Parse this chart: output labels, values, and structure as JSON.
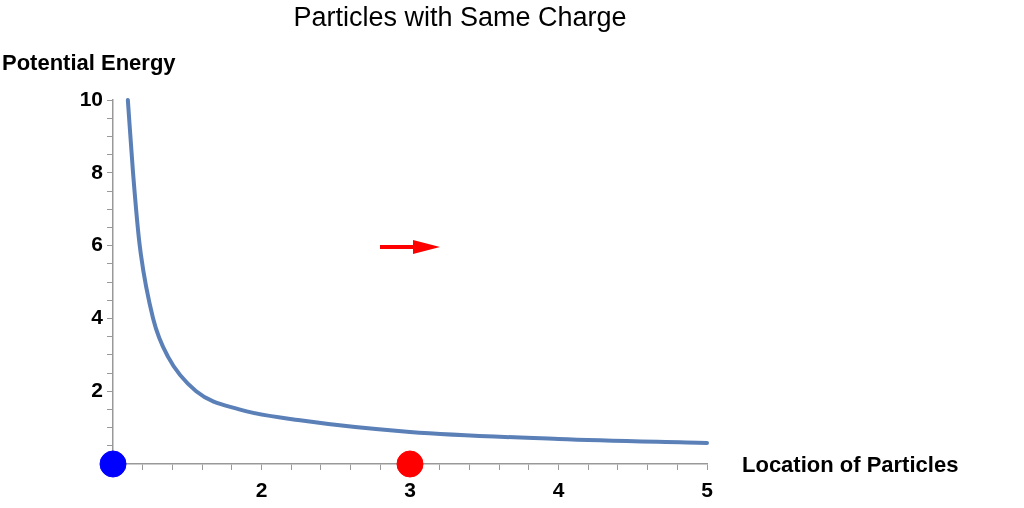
{
  "chart_data": {
    "type": "line",
    "title": "Particles with Same Charge",
    "xlabel": "Location of Particles",
    "ylabel": "Potential Energy",
    "xlim": [
      1,
      5
    ],
    "ylim": [
      0,
      10
    ],
    "xticks": [
      {
        "value": 1.2,
        "label": null
      },
      {
        "value": 1.4,
        "label": null
      },
      {
        "value": 1.6,
        "label": null
      },
      {
        "value": 1.8,
        "label": null
      },
      2,
      {
        "value": 2.2,
        "label": null
      },
      {
        "value": 2.4,
        "label": null
      },
      {
        "value": 2.6,
        "label": null
      },
      {
        "value": 2.8,
        "label": null
      },
      3,
      {
        "value": 3.2,
        "label": null
      },
      {
        "value": 3.4,
        "label": null
      },
      {
        "value": 3.6,
        "label": null
      },
      {
        "value": 3.8,
        "label": null
      },
      4,
      {
        "value": 4.2,
        "label": null
      },
      {
        "value": 4.4,
        "label": null
      },
      {
        "value": 4.6,
        "label": null
      },
      {
        "value": 4.8,
        "label": null
      },
      5
    ],
    "yticks": [
      {
        "value": 0.5,
        "label": null
      },
      {
        "value": 1,
        "label": null
      },
      {
        "value": 1.5,
        "label": null
      },
      2,
      {
        "value": 2.5,
        "label": null
      },
      {
        "value": 3,
        "label": null
      },
      {
        "value": 3.5,
        "label": null
      },
      4,
      {
        "value": 4.5,
        "label": null
      },
      {
        "value": 5,
        "label": null
      },
      {
        "value": 5.5,
        "label": null
      },
      6,
      {
        "value": 6.5,
        "label": null
      },
      {
        "value": 7,
        "label": null
      },
      {
        "value": 7.5,
        "label": null
      },
      8,
      {
        "value": 8.5,
        "label": null
      },
      {
        "value": 9,
        "label": null
      },
      {
        "value": 9.5,
        "label": null
      },
      10
    ],
    "grid": false,
    "legend": false,
    "series": [
      {
        "color": "#5b80b8",
        "marker": "none",
        "x": [
          1.1,
          1.135,
          1.18,
          1.27,
          1.37,
          1.56,
          1.85,
          2.26,
          3,
          4,
          5
        ],
        "values": [
          10,
          8,
          6,
          4,
          2.95,
          2,
          1.5,
          1.2,
          0.88,
          0.69,
          0.58
        ]
      },
      {
        "type": "scatter",
        "color": "#0000ff",
        "marker": "circle",
        "x": [
          1
        ],
        "values": [
          0
        ]
      },
      {
        "type": "scatter",
        "color": "#ff0000",
        "marker": "circle",
        "x": [
          3
        ],
        "values": [
          0
        ]
      }
    ]
  }
}
